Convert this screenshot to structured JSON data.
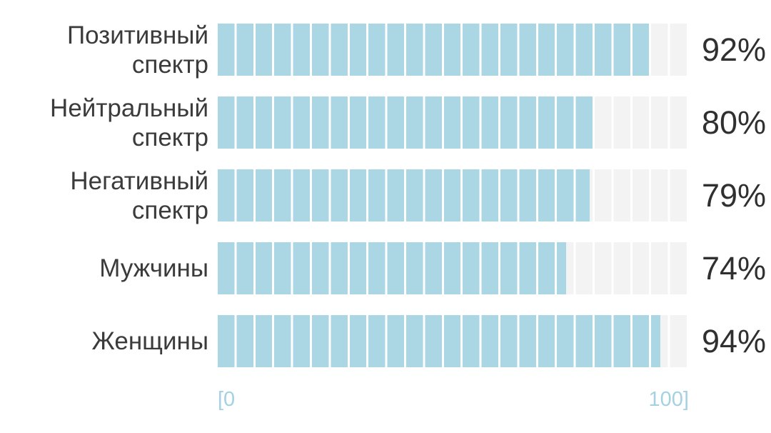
{
  "chart_data": {
    "type": "bar",
    "orientation": "horizontal",
    "title": "",
    "categories": [
      "Позитивный спектр",
      "Нейтральный спектр",
      "Негативный спектр",
      "Мужчины",
      "Женщины"
    ],
    "values": [
      92,
      80,
      79,
      74,
      94
    ],
    "value_labels": [
      "92%",
      "80%",
      "79%",
      "74%",
      "94%"
    ],
    "xlim": [
      0,
      100
    ],
    "axis_start_label": "[0",
    "axis_end_label": "100]",
    "grid": true,
    "grid_segments": 25,
    "legend": "none",
    "colors": {
      "bar": "#abd6e4",
      "track": "#f3f3f3",
      "gridline": "#ffffff",
      "label_text": "#3b3b3b",
      "value_text": "#303030",
      "axis_text": "#a4d2e2",
      "background": "#ffffff"
    }
  }
}
